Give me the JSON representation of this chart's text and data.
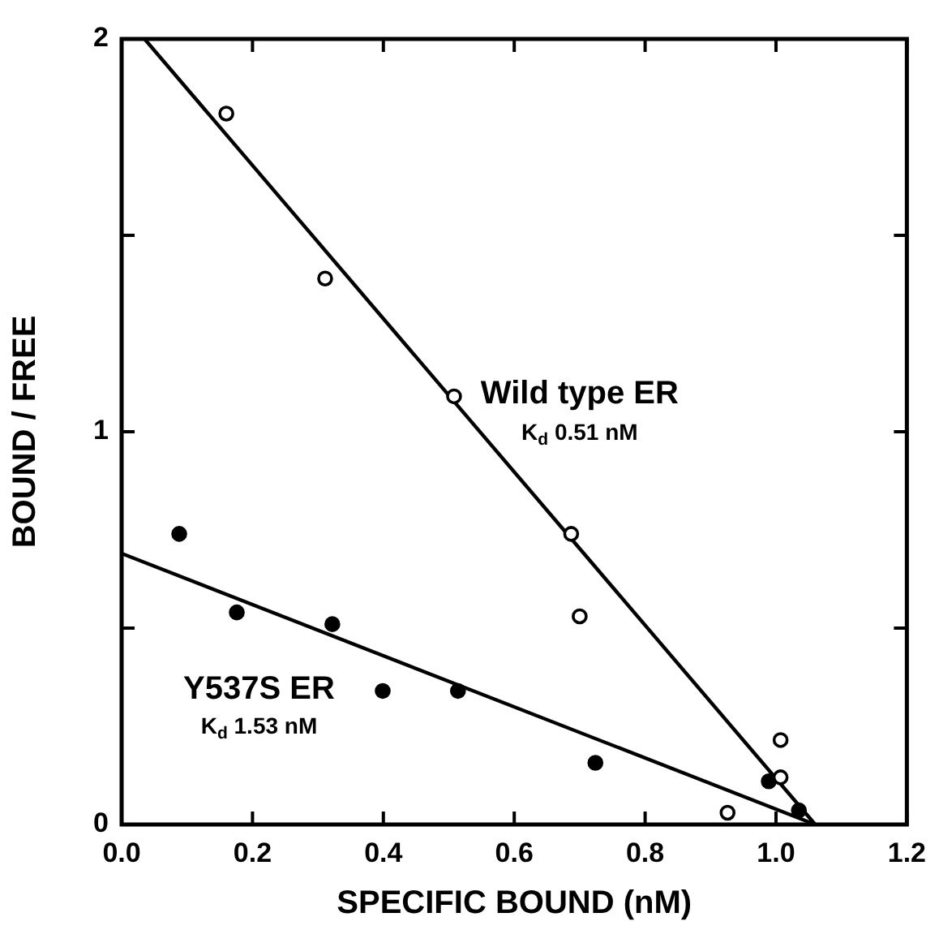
{
  "chart_data": {
    "type": "scatter",
    "xlabel": "SPECIFIC BOUND (nM)",
    "ylabel": "BOUND / FREE",
    "xlim": [
      0,
      1.2
    ],
    "xticks": [
      {
        "value": 0,
        "label": "0.0"
      },
      0.2,
      0.4,
      0.6,
      0.8,
      {
        "value": 1,
        "label": "1.0"
      },
      1.2
    ],
    "ylim": [
      0,
      2
    ],
    "yticks": [
      0,
      {
        "value": 0.5,
        "label": null
      },
      1,
      {
        "value": 1.5,
        "label": null
      },
      2
    ],
    "grid": false,
    "legend": false,
    "marker": "circle",
    "series": [
      {
        "color": "#000000",
        "x": [
          0.16,
          0.311,
          0.508,
          0.687,
          0.7,
          1.007,
          1.007,
          0.926
        ],
        "values": [
          1.81,
          1.39,
          1.09,
          0.74,
          0.53,
          0.215,
          0.12,
          0.03
        ]
      },
      {
        "color": "#000000",
        "x": [
          0.088,
          0.176,
          0.322,
          0.399,
          0.514,
          0.724,
          0.989,
          1.035
        ],
        "values": [
          0.74,
          0.54,
          0.51,
          0.34,
          0.34,
          0.157,
          0.11,
          0.036
        ]
      },
      {
        "type": "line",
        "color": "#000000",
        "marker": "none",
        "line_style": "solid",
        "x": [
          0.035,
          1.06
        ],
        "values": [
          2,
          0
        ]
      },
      {
        "type": "line",
        "color": "#000000",
        "marker": "none",
        "line_style": "solid",
        "x": [
          0,
          1.06
        ],
        "values": [
          0.69,
          0
        ]
      }
    ],
    "annotations": [
      "Wild type ER",
      "K$_{d}$ 0.51 nM",
      "Y537S ER",
      "K$_{d}$ 1.53 nM"
    ]
  }
}
